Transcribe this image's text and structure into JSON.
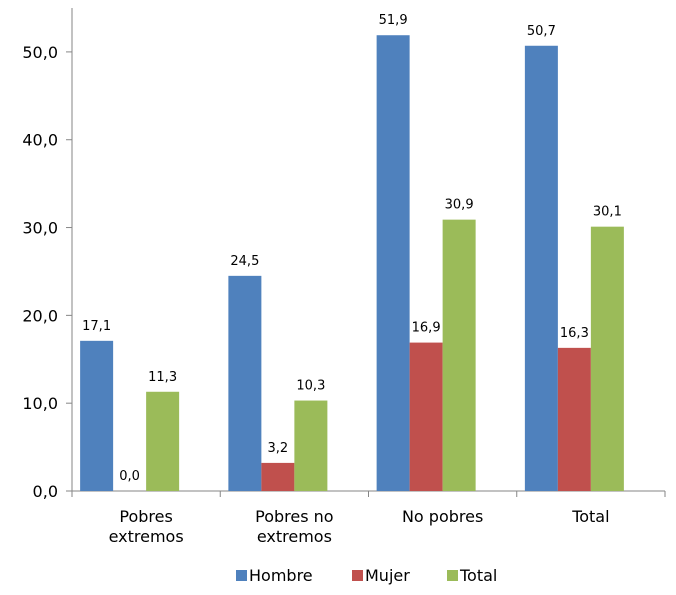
{
  "chart_data": {
    "type": "bar",
    "categories": [
      [
        "Pobres",
        "extremos"
      ],
      [
        "Pobres no",
        "extremos"
      ],
      [
        "No pobres"
      ],
      [
        "Total"
      ]
    ],
    "series": [
      {
        "name": "Hombre",
        "color": "#4F81BD",
        "values": [
          17.1,
          24.5,
          51.9,
          50.7
        ],
        "labels": [
          "17,1",
          "24,5",
          "51,9",
          "50,7"
        ]
      },
      {
        "name": "Mujer",
        "color": "#C0504D",
        "values": [
          0.0,
          3.2,
          16.9,
          16.3
        ],
        "labels": [
          "0,0",
          "3,2",
          "16,9",
          "16,3"
        ]
      },
      {
        "name": "Total",
        "color": "#9BBB59",
        "values": [
          11.3,
          10.3,
          30.9,
          30.1
        ],
        "labels": [
          "11,3",
          "10,3",
          "30,9",
          "30,1"
        ]
      }
    ],
    "y_ticks": [
      0,
      10,
      20,
      30,
      40,
      50
    ],
    "y_tick_labels": [
      "0,0",
      "10,0",
      "20,0",
      "30,0",
      "40,0",
      "50,0"
    ],
    "ylim": [
      0,
      55
    ],
    "title": "",
    "xlabel": "",
    "ylabel": "",
    "grid": false,
    "legend_position": "bottom"
  }
}
